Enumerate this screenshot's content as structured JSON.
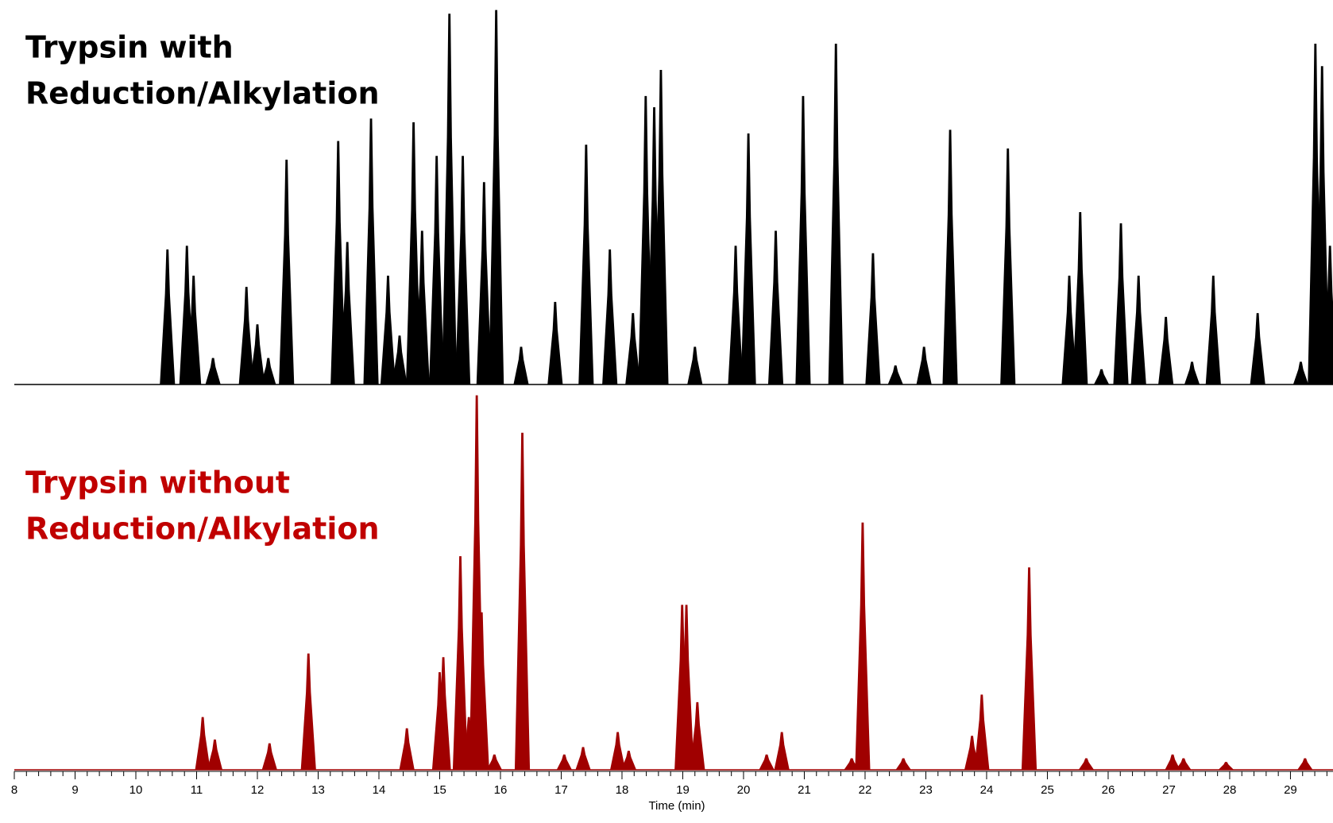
{
  "chart_data": [
    {
      "type": "chromatogram",
      "title": [
        "Trypsin with",
        "Reduction/Alkylation"
      ],
      "title_color": "#000000",
      "color": "#000000",
      "xlim": [
        8,
        29.7
      ],
      "ylim": [
        0,
        100
      ],
      "x": [
        10.52,
        10.84,
        10.95,
        11.27,
        11.82,
        12.0,
        12.18,
        12.48,
        13.33,
        13.48,
        13.87,
        14.15,
        14.34,
        14.57,
        14.71,
        14.95,
        15.16,
        15.38,
        15.73,
        15.93,
        16.34,
        16.9,
        17.41,
        17.8,
        18.18,
        18.39,
        18.53,
        18.64,
        19.2,
        19.87,
        20.08,
        20.53,
        20.98,
        21.52,
        22.13,
        22.5,
        22.97,
        23.4,
        24.35,
        25.36,
        25.54,
        25.89,
        26.21,
        26.5,
        26.95,
        27.38,
        27.73,
        28.46,
        29.17,
        29.41,
        29.52,
        29.65
      ],
      "values": [
        36,
        37,
        29,
        7,
        26,
        16,
        7,
        60,
        65,
        38,
        71,
        29,
        13,
        70,
        41,
        61,
        99,
        61,
        54,
        100,
        10,
        22,
        64,
        36,
        19,
        77,
        74,
        84,
        10,
        37,
        67,
        41,
        77,
        91,
        35,
        5,
        10,
        68,
        63,
        29,
        46,
        4,
        43,
        29,
        18,
        6,
        29,
        19,
        6,
        91,
        85,
        37
      ]
    },
    {
      "type": "chromatogram",
      "title": [
        "Trypsin without",
        "Reduction/Alkylation"
      ],
      "title_color": "#c00000",
      "color": "#a00000",
      "xlim": [
        8,
        29.7
      ],
      "ylim": [
        0,
        100
      ],
      "x": [
        11.1,
        11.3,
        12.2,
        12.84,
        14.46,
        15.0,
        15.06,
        15.34,
        15.48,
        15.61,
        15.69,
        15.9,
        16.36,
        17.05,
        17.36,
        17.93,
        18.11,
        18.99,
        19.06,
        19.24,
        20.38,
        20.63,
        21.78,
        21.96,
        22.63,
        23.76,
        23.92,
        24.7,
        25.64,
        27.06,
        27.24,
        27.94,
        29.24
      ],
      "values": [
        14,
        8,
        7,
        31,
        11,
        26,
        30,
        57,
        14,
        100,
        42,
        4,
        90,
        4,
        6,
        10,
        5,
        44,
        44,
        18,
        4,
        10,
        3,
        66,
        3,
        9,
        20,
        54,
        3,
        4,
        3,
        2,
        3
      ],
      "xticks": [
        8,
        9,
        10,
        11,
        12,
        13,
        14,
        15,
        16,
        17,
        18,
        19,
        20,
        21,
        22,
        23,
        24,
        25,
        26,
        27,
        28,
        29
      ],
      "xlabel": "Time (min)"
    }
  ]
}
